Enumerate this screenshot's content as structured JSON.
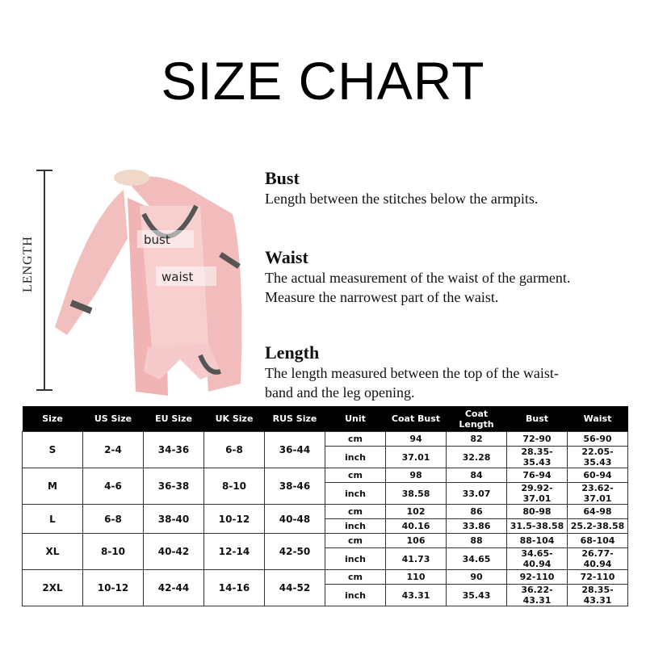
{
  "title": "SIZE CHART",
  "length_label": "LENGTH",
  "photo_labels": {
    "bust": "bust",
    "waist": "waist"
  },
  "colors": {
    "garment": "#f4c6c6",
    "header_bg": "#000000",
    "lace": "#555555"
  },
  "descriptions": [
    {
      "heading": "Bust",
      "lines": [
        "Length between the stitches below the armpits."
      ]
    },
    {
      "heading": "Waist",
      "lines": [
        "The actual measurement of the waist of the garment.",
        "Measure the narrowest part of the waist."
      ]
    },
    {
      "heading": "Length",
      "lines": [
        "The length measured between the top of the waist-",
        "band and the leg opening."
      ]
    }
  ],
  "table": {
    "headers": [
      "Size",
      "US Size",
      "EU Size",
      "UK Size",
      "RUS Size",
      "Unit",
      "Coat Bust",
      "Coat Length",
      "Bust",
      "Waist"
    ],
    "rows": [
      {
        "size": "S",
        "us": "2-4",
        "eu": "34-36",
        "uk": "6-8",
        "rus": "36-44",
        "cm": [
          "cm",
          "94",
          "82",
          "72-90",
          "56-90"
        ],
        "inch": [
          "inch",
          "37.01",
          "32.28",
          "28.35-35.43",
          "22.05-35.43"
        ]
      },
      {
        "size": "M",
        "us": "4-6",
        "eu": "36-38",
        "uk": "8-10",
        "rus": "38-46",
        "cm": [
          "cm",
          "98",
          "84",
          "76-94",
          "60-94"
        ],
        "inch": [
          "inch",
          "38.58",
          "33.07",
          "29.92-37.01",
          "23.62-37.01"
        ]
      },
      {
        "size": "L",
        "us": "6-8",
        "eu": "38-40",
        "uk": "10-12",
        "rus": "40-48",
        "cm": [
          "cm",
          "102",
          "86",
          "80-98",
          "64-98"
        ],
        "inch": [
          "inch",
          "40.16",
          "33.86",
          "31.5-38.58",
          "25.2-38.58"
        ]
      },
      {
        "size": "XL",
        "us": "8-10",
        "eu": "40-42",
        "uk": "12-14",
        "rus": "42-50",
        "cm": [
          "cm",
          "106",
          "88",
          "88-104",
          "68-104"
        ],
        "inch": [
          "inch",
          "41.73",
          "34.65",
          "34.65-40.94",
          "26.77-40.94"
        ]
      },
      {
        "size": "2XL",
        "us": "10-12",
        "eu": "42-44",
        "uk": "14-16",
        "rus": "44-52",
        "cm": [
          "cm",
          "110",
          "90",
          "92-110",
          "72-110"
        ],
        "inch": [
          "inch",
          "43.31",
          "35.43",
          "36.22-43.31",
          "28.35-43.31"
        ]
      }
    ]
  }
}
